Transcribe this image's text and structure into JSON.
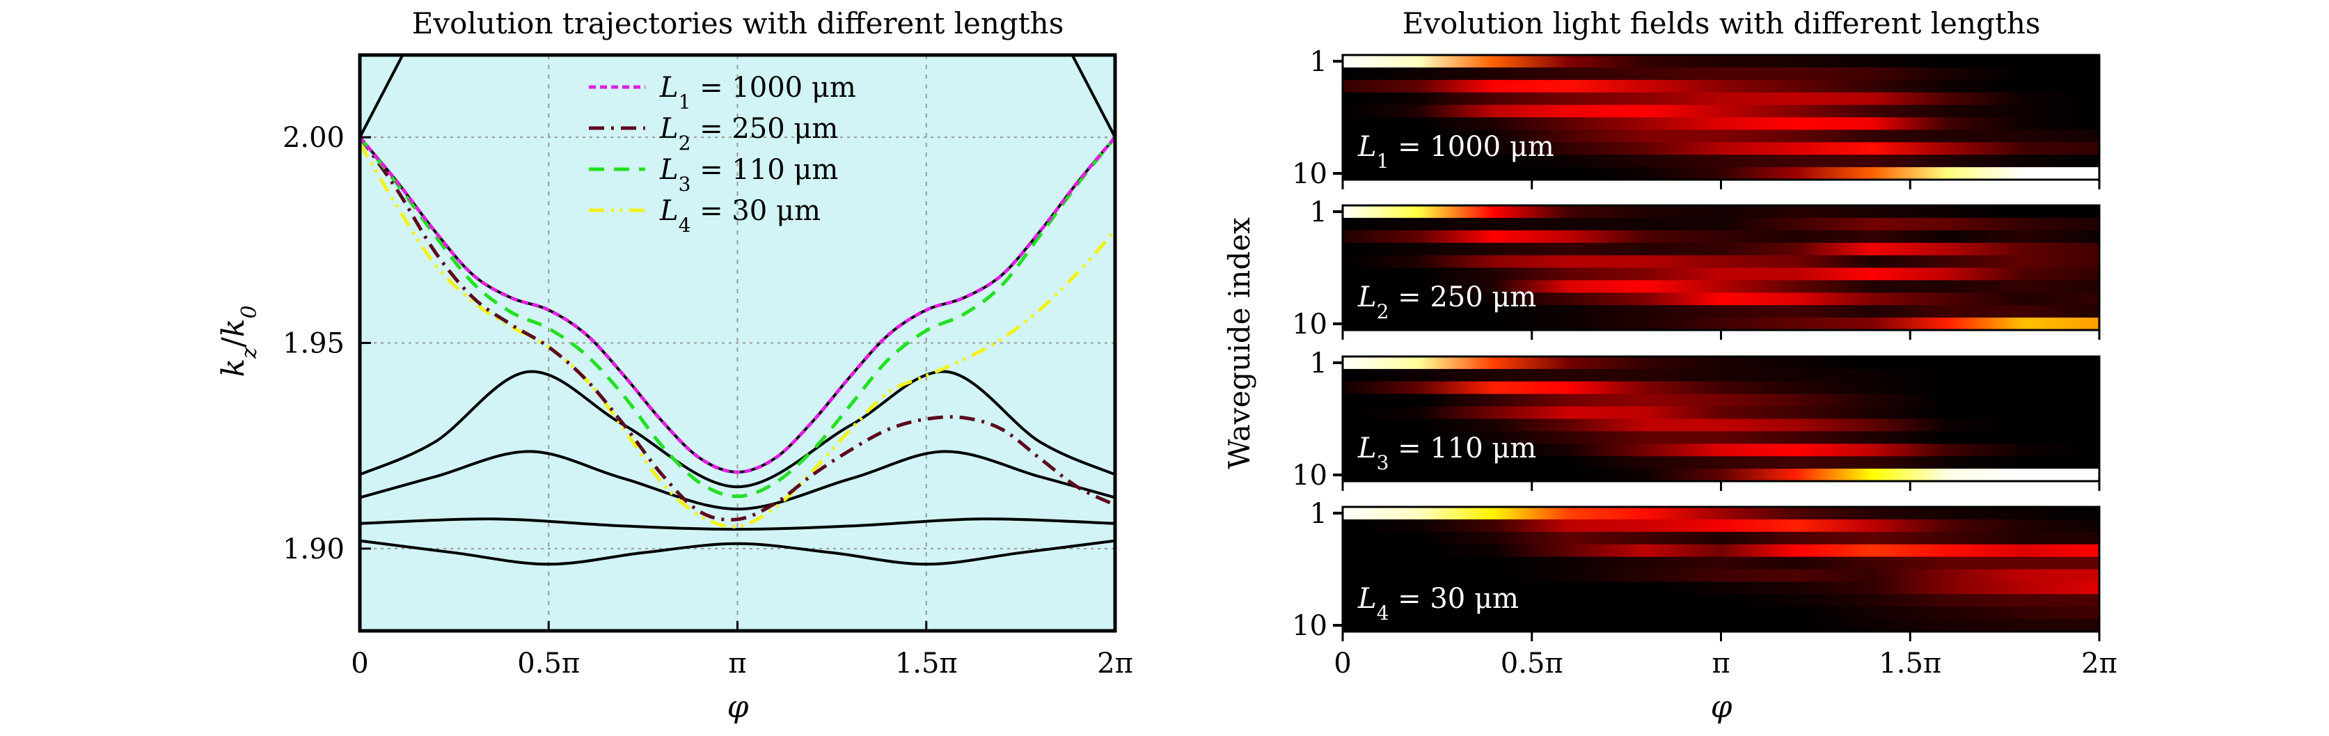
{
  "chart_data": [
    {
      "type": "line",
      "title": "Evolution trajectories with different lengths",
      "xlabel": "φ",
      "ylabel": "k_z/k_0",
      "xlim_pi": [
        0,
        2
      ],
      "ylim": [
        1.88,
        2.02
      ],
      "x_ticks": [
        {
          "value_pi": 0,
          "label": "0"
        },
        {
          "value_pi": 0.5,
          "label": "0.5π"
        },
        {
          "value_pi": 1,
          "label": "π"
        },
        {
          "value_pi": 1.5,
          "label": "1.5π"
        },
        {
          "value_pi": 2,
          "label": "2π"
        }
      ],
      "y_ticks": [
        {
          "value": 1.9,
          "label": "1.90"
        },
        {
          "value": 1.95,
          "label": "1.95"
        },
        {
          "value": 2.0,
          "label": "2.00"
        }
      ],
      "grid": "dotted at ticks",
      "background": "#d2f4f6",
      "legend_position": "top-center",
      "bands": [
        {
          "name": "band-top",
          "x_pi": [
            0,
            0.17,
            1.83,
            2
          ],
          "y": [
            2.0,
            2.02,
            2.02,
            2.0
          ]
        },
        {
          "name": "band-1",
          "x_pi": [
            0,
            0.2,
            0.447,
            0.7,
            1.0,
            1.3,
            1.553,
            1.8,
            2.0
          ],
          "y": [
            1.918,
            1.926,
            1.943,
            1.93,
            1.915,
            1.93,
            1.943,
            1.926,
            1.918
          ]
        },
        {
          "name": "band-2",
          "x_pi": [
            0,
            0.2,
            0.45,
            0.7,
            1.0,
            1.3,
            1.55,
            1.8,
            2.0
          ],
          "y": [
            1.9124,
            1.9175,
            1.9236,
            1.917,
            1.9096,
            1.917,
            1.9236,
            1.9175,
            1.9124
          ]
        },
        {
          "name": "band-3",
          "x_pi": [
            0,
            0.35,
            0.7,
            1.0,
            1.3,
            1.65,
            2.0
          ],
          "y": [
            1.9061,
            1.9072,
            1.9055,
            1.9047,
            1.9055,
            1.9072,
            1.9061
          ]
        },
        {
          "name": "band-4",
          "x_pi": [
            0,
            0.25,
            0.5,
            0.75,
            1.0,
            1.25,
            1.5,
            1.75,
            2.0
          ],
          "y": [
            1.9019,
            1.899,
            1.8962,
            1.899,
            1.9012,
            1.899,
            1.8962,
            1.899,
            1.9019
          ]
        }
      ],
      "series": [
        {
          "name": "L_1 = 1000 μm",
          "label_main": "L",
          "label_sub": "1",
          "label_rest": " = 1000 μm",
          "color": "#e020e0",
          "dash": "dotted",
          "x_pi": [
            0,
            0.1,
            0.2,
            0.3,
            0.4,
            0.5,
            0.6,
            0.7,
            0.8,
            0.9,
            1.0,
            1.1,
            1.2,
            1.3,
            1.4,
            1.5,
            1.6,
            1.7,
            1.8,
            1.9,
            2.0
          ],
          "y": [
            2.0,
            1.989,
            1.977,
            1.9665,
            1.961,
            1.958,
            1.952,
            1.942,
            1.931,
            1.922,
            1.9186,
            1.922,
            1.931,
            1.942,
            1.952,
            1.958,
            1.961,
            1.9665,
            1.977,
            1.989,
            2.0
          ]
        },
        {
          "name": "L_2 = 250 μm",
          "label_main": "L",
          "label_sub": "2",
          "label_rest": " = 250 μm",
          "color": "#5c0a1e",
          "dash": "dashdot",
          "x_pi": [
            0,
            0.1,
            0.2,
            0.3,
            0.4,
            0.5,
            0.6,
            0.7,
            0.8,
            0.9,
            1.0,
            1.1,
            1.2,
            1.3,
            1.4,
            1.5,
            1.6,
            1.7,
            1.8,
            1.9,
            2.0
          ],
          "y": [
            2.0,
            1.987,
            1.972,
            1.961,
            1.9545,
            1.949,
            1.941,
            1.93,
            1.918,
            1.909,
            1.9071,
            1.911,
            1.918,
            1.924,
            1.929,
            1.9315,
            1.9318,
            1.929,
            1.922,
            1.915,
            1.9106
          ]
        },
        {
          "name": "L_3 = 110 μm",
          "label_main": "L",
          "label_sub": "3",
          "label_rest": " = 110 μm",
          "color": "#22e022",
          "dash": "dashed",
          "x_pi": [
            0,
            0.1,
            0.2,
            0.3,
            0.4,
            0.5,
            0.6,
            0.7,
            0.8,
            0.9,
            1.0,
            1.1,
            1.2,
            1.3,
            1.4,
            1.5,
            1.6,
            1.7,
            1.8,
            1.9,
            2.0
          ],
          "y": [
            2.0,
            1.9885,
            1.976,
            1.9645,
            1.9575,
            1.9535,
            1.947,
            1.937,
            1.925,
            1.916,
            1.9127,
            1.916,
            1.924,
            1.935,
            1.946,
            1.953,
            1.957,
            1.964,
            1.976,
            1.9885,
            2.0
          ]
        },
        {
          "name": "L_4 = 30 μm",
          "label_main": "L",
          "label_sub": "4",
          "label_rest": " = 30 μm",
          "color": "#f2f21a",
          "dash": "dashdotdot",
          "x_pi": [
            0,
            0.1,
            0.2,
            0.3,
            0.4,
            0.5,
            0.6,
            0.7,
            0.8,
            0.9,
            1.0,
            1.1,
            1.2,
            1.3,
            1.4,
            1.5,
            1.6,
            1.7,
            1.8,
            1.9,
            2.0
          ],
          "y": [
            1.9985,
            1.983,
            1.969,
            1.96,
            1.954,
            1.949,
            1.941,
            1.929,
            1.916,
            1.908,
            1.9054,
            1.91,
            1.919,
            1.929,
            1.938,
            1.942,
            1.946,
            1.951,
            1.958,
            1.967,
            1.9773
          ]
        }
      ]
    },
    {
      "type": "heatmap",
      "title": "Evolution light fields with different lengths",
      "xlabel": "φ",
      "ylabel": "Waveguide index",
      "xlim_pi": [
        0,
        2
      ],
      "x_ticks": [
        {
          "value_pi": 0,
          "label": "0"
        },
        {
          "value_pi": 0.5,
          "label": "0.5π"
        },
        {
          "value_pi": 1,
          "label": "π"
        },
        {
          "value_pi": 1.5,
          "label": "1.5π"
        },
        {
          "value_pi": 2,
          "label": "2π"
        }
      ],
      "y_ticks": [
        {
          "value": 1,
          "label": "1"
        },
        {
          "value": 10,
          "label": "10"
        }
      ],
      "colormap": "hot (black-red-yellow-white)",
      "column_positions_pi": [
        0,
        0.2,
        0.4,
        0.6,
        0.8,
        1.0,
        1.2,
        1.4,
        1.6,
        1.8,
        2.0
      ],
      "panels": [
        {
          "label_main": "L",
          "label_sub": "1",
          "label_rest": " = 1000 μm",
          "intensity": [
            [
              1.0,
              0.95,
              0.55,
              0.2,
              0.08,
              0.05,
              0.04,
              0.02,
              0.0,
              0.0,
              0.0
            ],
            [
              0.0,
              0.02,
              0.05,
              0.08,
              0.1,
              0.12,
              0.12,
              0.1,
              0.04,
              0.0,
              0.0
            ],
            [
              0.08,
              0.15,
              0.4,
              0.42,
              0.32,
              0.22,
              0.15,
              0.08,
              0.02,
              0.0,
              0.0
            ],
            [
              0.0,
              0.02,
              0.12,
              0.18,
              0.22,
              0.28,
              0.3,
              0.28,
              0.12,
              0.02,
              0.0
            ],
            [
              0.0,
              0.05,
              0.3,
              0.38,
              0.4,
              0.3,
              0.2,
              0.1,
              0.04,
              0.02,
              0.0
            ],
            [
              0.0,
              0.0,
              0.05,
              0.15,
              0.25,
              0.35,
              0.4,
              0.38,
              0.1,
              0.02,
              0.0
            ],
            [
              0.0,
              0.0,
              0.02,
              0.12,
              0.2,
              0.2,
              0.15,
              0.08,
              0.05,
              0.05,
              0.03
            ],
            [
              0.0,
              0.0,
              0.02,
              0.08,
              0.15,
              0.28,
              0.35,
              0.42,
              0.25,
              0.1,
              0.08
            ],
            [
              0.0,
              0.0,
              0.0,
              0.02,
              0.05,
              0.08,
              0.1,
              0.1,
              0.05,
              0.02,
              0.0
            ],
            [
              0.0,
              0.0,
              0.0,
              0.0,
              0.02,
              0.08,
              0.25,
              0.55,
              0.9,
              1.0,
              1.0
            ]
          ]
        },
        {
          "label_main": "L",
          "label_sub": "2",
          "label_rest": " = 250 μm",
          "intensity": [
            [
              1.0,
              0.85,
              0.4,
              0.1,
              0.05,
              0.03,
              0.06,
              0.04,
              0.02,
              0.0,
              0.0
            ],
            [
              0.0,
              0.02,
              0.03,
              0.03,
              0.03,
              0.03,
              0.1,
              0.18,
              0.15,
              0.08,
              0.05
            ],
            [
              0.05,
              0.15,
              0.4,
              0.3,
              0.12,
              0.08,
              0.05,
              0.08,
              0.02,
              0.06,
              0.02
            ],
            [
              0.0,
              0.02,
              0.05,
              0.08,
              0.06,
              0.08,
              0.15,
              0.38,
              0.28,
              0.15,
              0.1
            ],
            [
              0.0,
              0.05,
              0.22,
              0.28,
              0.28,
              0.22,
              0.18,
              0.05,
              0.1,
              0.15,
              0.1
            ],
            [
              0.0,
              0.0,
              0.05,
              0.15,
              0.2,
              0.3,
              0.3,
              0.4,
              0.3,
              0.12,
              0.08
            ],
            [
              0.0,
              0.0,
              0.05,
              0.35,
              0.4,
              0.28,
              0.15,
              0.05,
              0.05,
              0.08,
              0.05
            ],
            [
              0.0,
              0.0,
              0.02,
              0.1,
              0.2,
              0.4,
              0.35,
              0.2,
              0.12,
              0.05,
              0.08
            ],
            [
              0.0,
              0.0,
              0.0,
              0.02,
              0.05,
              0.08,
              0.1,
              0.05,
              0.1,
              0.1,
              0.05
            ],
            [
              0.0,
              0.0,
              0.0,
              0.02,
              0.05,
              0.1,
              0.15,
              0.2,
              0.45,
              0.7,
              0.65
            ]
          ]
        },
        {
          "label_main": "L",
          "label_sub": "3",
          "label_rest": " = 110 μm",
          "intensity": [
            [
              1.0,
              0.92,
              0.5,
              0.18,
              0.08,
              0.04,
              0.02,
              0.0,
              0.0,
              0.0,
              0.0
            ],
            [
              0.0,
              0.02,
              0.05,
              0.06,
              0.06,
              0.04,
              0.03,
              0.02,
              0.0,
              0.0,
              0.0
            ],
            [
              0.02,
              0.15,
              0.45,
              0.4,
              0.2,
              0.1,
              0.05,
              0.02,
              0.0,
              0.0,
              0.0
            ],
            [
              0.0,
              0.0,
              0.08,
              0.18,
              0.22,
              0.18,
              0.12,
              0.05,
              0.0,
              0.0,
              0.0
            ],
            [
              0.0,
              0.02,
              0.18,
              0.32,
              0.3,
              0.15,
              0.1,
              0.04,
              0.0,
              0.0,
              0.0
            ],
            [
              0.0,
              0.0,
              0.04,
              0.15,
              0.3,
              0.3,
              0.25,
              0.15,
              0.02,
              0.0,
              0.0
            ],
            [
              0.0,
              0.0,
              0.02,
              0.08,
              0.15,
              0.15,
              0.1,
              0.05,
              0.0,
              0.0,
              0.0
            ],
            [
              0.0,
              0.0,
              0.0,
              0.04,
              0.18,
              0.35,
              0.4,
              0.3,
              0.1,
              0.02,
              0.0
            ],
            [
              0.0,
              0.0,
              0.0,
              0.0,
              0.05,
              0.08,
              0.1,
              0.08,
              0.02,
              0.0,
              0.0
            ],
            [
              0.0,
              0.0,
              0.0,
              0.0,
              0.02,
              0.15,
              0.45,
              0.8,
              0.98,
              1.0,
              1.0
            ]
          ]
        },
        {
          "label_main": "L",
          "label_sub": "4",
          "label_rest": " = 30 μm",
          "intensity": [
            [
              1.0,
              0.95,
              0.78,
              0.5,
              0.42,
              0.25,
              0.12,
              0.06,
              0.03,
              0.02,
              0.0
            ],
            [
              0.0,
              0.02,
              0.1,
              0.3,
              0.32,
              0.38,
              0.45,
              0.3,
              0.12,
              0.05,
              0.02
            ],
            [
              0.0,
              0.0,
              0.05,
              0.15,
              0.1,
              0.05,
              0.12,
              0.15,
              0.1,
              0.05,
              0.05
            ],
            [
              0.0,
              0.0,
              0.02,
              0.15,
              0.3,
              0.18,
              0.4,
              0.48,
              0.42,
              0.35,
              0.4
            ],
            [
              0.0,
              0.0,
              0.0,
              0.02,
              0.05,
              0.08,
              0.05,
              0.1,
              0.15,
              0.15,
              0.15
            ],
            [
              0.0,
              0.0,
              0.0,
              0.02,
              0.06,
              0.1,
              0.12,
              0.08,
              0.2,
              0.3,
              0.32
            ],
            [
              0.0,
              0.0,
              0.0,
              0.0,
              0.0,
              0.02,
              0.04,
              0.08,
              0.2,
              0.28,
              0.35
            ],
            [
              0.0,
              0.0,
              0.0,
              0.0,
              0.0,
              0.0,
              0.02,
              0.05,
              0.1,
              0.12,
              0.12
            ],
            [
              0.0,
              0.0,
              0.0,
              0.0,
              0.0,
              0.0,
              0.0,
              0.03,
              0.05,
              0.08,
              0.1
            ],
            [
              0.0,
              0.0,
              0.0,
              0.0,
              0.0,
              0.0,
              0.0,
              0.02,
              0.04,
              0.05,
              0.05
            ]
          ]
        }
      ]
    }
  ]
}
